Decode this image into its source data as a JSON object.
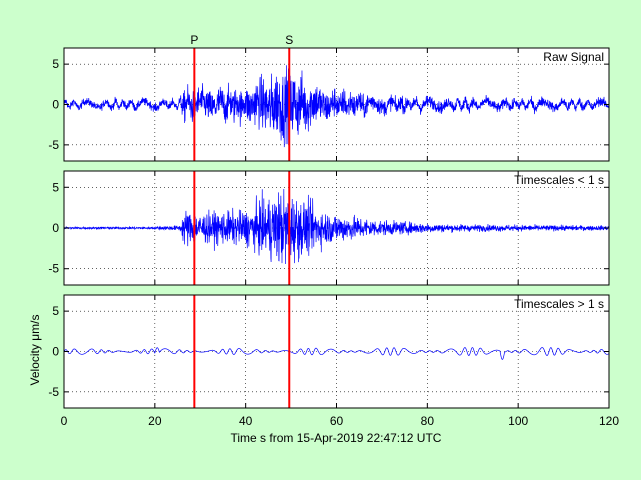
{
  "chart_data": {
    "type": "line",
    "xlabel": "Time s from 15-Apr-2019 22:47:12 UTC",
    "ylabel": "Velocity μm/s",
    "xlim": [
      0,
      120
    ],
    "xticks": [
      0,
      20,
      40,
      60,
      80,
      100,
      120
    ],
    "grid": true,
    "line_color": "#0000ff",
    "marker_color": "#ff0000",
    "phase_markers": [
      {
        "label": "P",
        "time": 28.7
      },
      {
        "label": "S",
        "time": 49.6
      }
    ],
    "panels": [
      {
        "label": "Raw Signal",
        "ylim": [
          -7,
          7
        ],
        "yticks": [
          -5,
          0,
          5
        ],
        "envelope": [
          {
            "t": 0,
            "amp": 0.4
          },
          {
            "t": 20,
            "amp": 0.45
          },
          {
            "t": 25.5,
            "amp": 0.5
          },
          {
            "t": 26.5,
            "amp": 1.8
          },
          {
            "t": 30,
            "amp": 1.7
          },
          {
            "t": 40,
            "amp": 1.9
          },
          {
            "t": 44,
            "amp": 3.0
          },
          {
            "t": 48,
            "amp": 4.0
          },
          {
            "t": 52,
            "amp": 3.2
          },
          {
            "t": 58,
            "amp": 1.8
          },
          {
            "t": 70,
            "amp": 0.9
          },
          {
            "t": 85,
            "amp": 0.6
          },
          {
            "t": 120,
            "amp": 0.5
          }
        ]
      },
      {
        "label": "Timescales < 1 s",
        "ylim": [
          -7,
          7
        ],
        "yticks": [
          -5,
          0,
          5
        ],
        "envelope": [
          {
            "t": 0,
            "amp": 0.12
          },
          {
            "t": 20,
            "amp": 0.15
          },
          {
            "t": 25.5,
            "amp": 0.3
          },
          {
            "t": 26.5,
            "amp": 2.0
          },
          {
            "t": 30,
            "amp": 1.6
          },
          {
            "t": 40,
            "amp": 1.9
          },
          {
            "t": 44,
            "amp": 3.0
          },
          {
            "t": 48,
            "amp": 4.2
          },
          {
            "t": 52,
            "amp": 3.2
          },
          {
            "t": 58,
            "amp": 1.7
          },
          {
            "t": 70,
            "amp": 0.8
          },
          {
            "t": 85,
            "amp": 0.4
          },
          {
            "t": 120,
            "amp": 0.25
          }
        ]
      },
      {
        "label": "Timescales > 1 s",
        "ylim": [
          -7,
          7
        ],
        "yticks": [
          -5,
          0,
          5
        ],
        "envelope": [
          {
            "t": 0,
            "amp": 0.35
          },
          {
            "t": 20,
            "amp": 0.35
          },
          {
            "t": 50,
            "amp": 0.4
          },
          {
            "t": 80,
            "amp": 0.5
          },
          {
            "t": 120,
            "amp": 0.5
          }
        ]
      }
    ]
  }
}
